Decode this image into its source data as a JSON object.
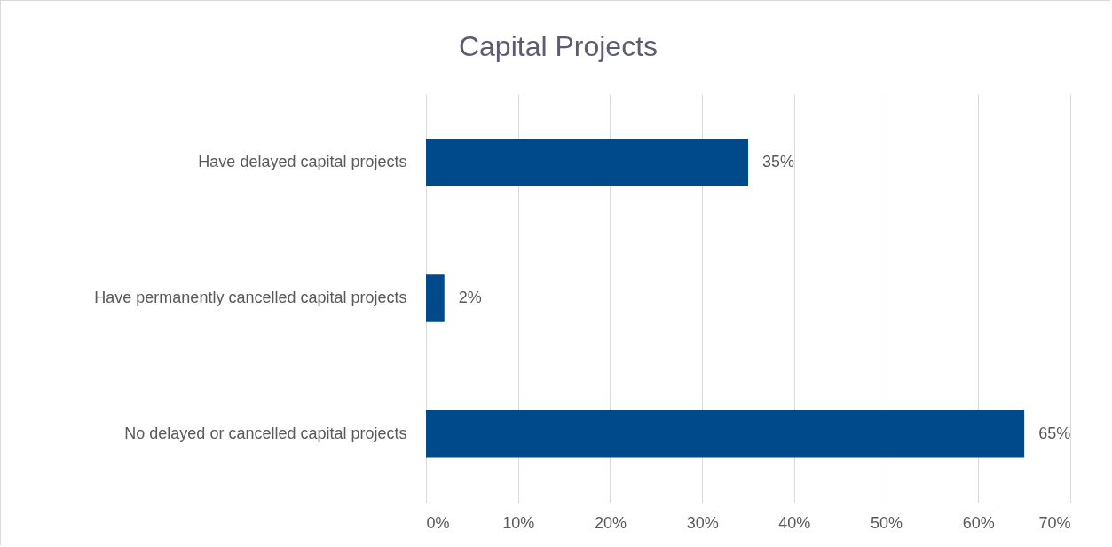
{
  "chart_data": {
    "type": "bar",
    "orientation": "horizontal",
    "title": "Capital Projects",
    "categories": [
      "Have delayed capital projects",
      "Have permanently cancelled capital projects",
      "No delayed or cancelled capital projects"
    ],
    "values": [
      35,
      2,
      65
    ],
    "value_labels": [
      "35%",
      "2%",
      "65%"
    ],
    "color": "#004a8c",
    "xlim": [
      0,
      70
    ],
    "xticks": [
      {
        "value": 0,
        "label": "0%"
      },
      {
        "value": 10,
        "label": "10%"
      },
      {
        "value": 20,
        "label": "20%"
      },
      {
        "value": 30,
        "label": "30%"
      },
      {
        "value": 40,
        "label": "40%"
      },
      {
        "value": 50,
        "label": "50%"
      },
      {
        "value": 60,
        "label": "60%"
      },
      {
        "value": 70,
        "label": "70%"
      }
    ],
    "grid": "x"
  }
}
